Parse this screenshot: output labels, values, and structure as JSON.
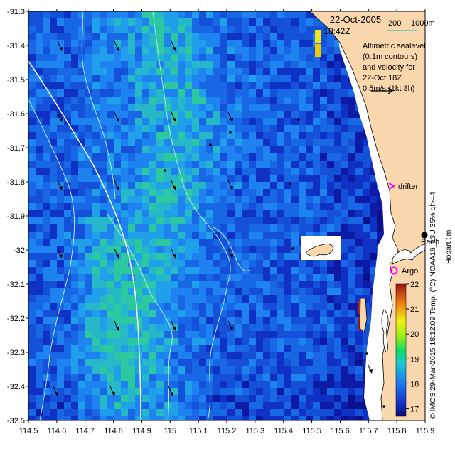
{
  "map": {
    "date": "22-Oct-2005",
    "time": "18:42Z",
    "bathymetry_legend": {
      "contour_200": "200",
      "contour_1000": "1000m"
    },
    "caption_lines": [
      "Altimetric sealevel",
      "(0.1m contours)",
      "and velocity for",
      "22-Oct 18Z",
      "0.5m/s (1kt 3h)"
    ],
    "labels": {
      "drifter": "drifter",
      "argo": "Argo",
      "perth": "Perth"
    },
    "side_credit": "Hobart tim",
    "colorbar_caption": "© IMOS 29-Mar-2015 18:12:09 Temp. (°C) NOAA16_L3U 35% ql>=4"
  },
  "chart_data": {
    "type": "heatmap",
    "x_ticks": [
      "114.5",
      "114.6",
      "114.7",
      "114.8",
      "114.9",
      "115",
      "115.1",
      "115.2",
      "115.3",
      "115.4",
      "115.5",
      "115.6",
      "115.7",
      "115.8",
      "115.9"
    ],
    "y_ticks": [
      "-31.3",
      "-31.4",
      "-31.5",
      "-31.6",
      "-31.7",
      "-31.8",
      "-31.9",
      "-32",
      "-32.1",
      "-32.2",
      "-32.3",
      "-32.4",
      "-32.5"
    ],
    "xlim": [
      114.5,
      115.9
    ],
    "ylim": [
      -32.5,
      -31.3
    ],
    "colorbar": {
      "min": 16.7,
      "max": 22,
      "ticks": [
        "17",
        "18",
        "19",
        "20",
        "21",
        "22"
      ]
    },
    "colors": {
      "land": "#fbd7ad",
      "cold": "#0a0f8c",
      "mid": "#1e64e6",
      "warm": "#2cc8a0",
      "contour": "#b4ebf0",
      "drifter_marker": "#ff00ff",
      "argo_marker": "#ff00ff",
      "velocity_arrow": "#000000"
    }
  }
}
